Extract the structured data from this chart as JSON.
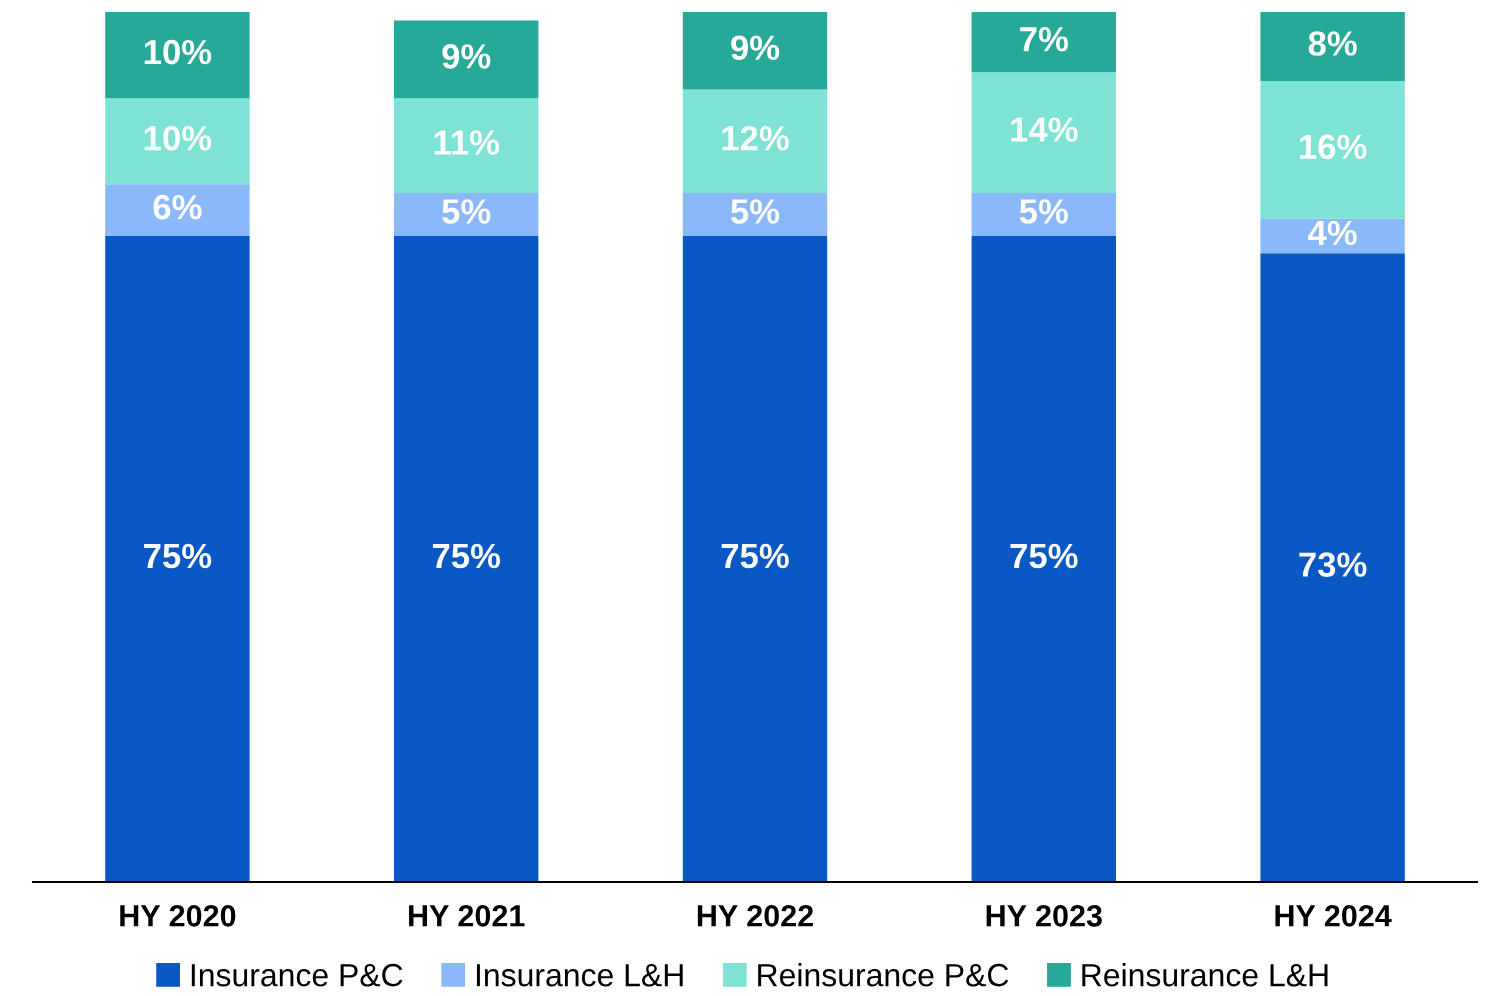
{
  "chart_data": {
    "type": "bar",
    "stacked": true,
    "legend": "bottom",
    "grid": false,
    "categories": [
      "HY 2020",
      "HY 2021",
      "HY 2022",
      "HY 2023",
      "HY 2024"
    ],
    "series": [
      {
        "name": "Insurance P&C",
        "color": "#0a58c4",
        "values": [
          75,
          75,
          75,
          75,
          73
        ],
        "value_labels": [
          "75%",
          "75%",
          "75%",
          "75%",
          "73%"
        ]
      },
      {
        "name": "Insurance L&H",
        "color": "#8ab8f8",
        "values": [
          6,
          5,
          5,
          5,
          4
        ],
        "value_labels": [
          "6%",
          "5%",
          "5%",
          "5%",
          "4%"
        ]
      },
      {
        "name": "Reinsurance P&C",
        "color": "#7de3d4",
        "values": [
          10,
          11,
          12,
          14,
          16
        ],
        "value_labels": [
          "10%",
          "11%",
          "12%",
          "14%",
          "16%"
        ]
      },
      {
        "name": "Reinsurance L&H",
        "color": "#26a996",
        "values": [
          10,
          9,
          9,
          7,
          8
        ],
        "value_labels": [
          "10%",
          "9%",
          "9%",
          "7%",
          "8%"
        ]
      }
    ]
  }
}
